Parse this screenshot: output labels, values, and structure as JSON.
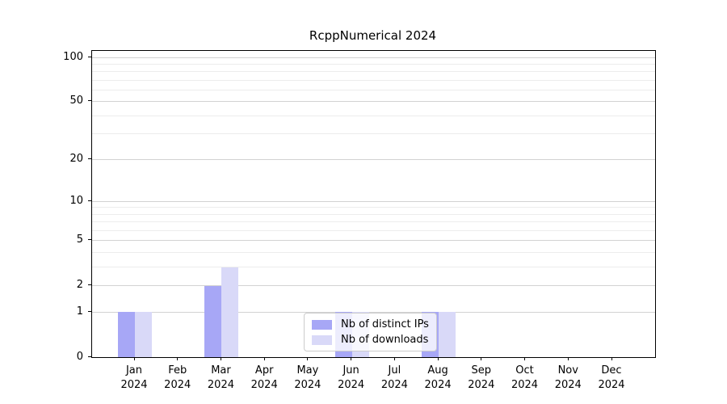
{
  "title": "RcppNumerical 2024",
  "chart_data": {
    "type": "bar",
    "title": "RcppNumerical 2024",
    "yscale": "log1p",
    "grid": true,
    "legend_position": "lower center",
    "categories": [
      "Jan 2024",
      "Feb 2024",
      "Mar 2024",
      "Apr 2024",
      "May 2024",
      "Jun 2024",
      "Jul 2024",
      "Aug 2024",
      "Sep 2024",
      "Oct 2024",
      "Nov 2024",
      "Dec 2024"
    ],
    "series": [
      {
        "name": "Nb of distinct IPs",
        "color": "#a7a7f6",
        "values": [
          1,
          0,
          2,
          0,
          0,
          1,
          0,
          1,
          0,
          0,
          0,
          0
        ]
      },
      {
        "name": "Nb of downloads",
        "color": "#d9d9f8",
        "values": [
          1,
          0,
          3,
          0,
          0,
          1,
          0,
          1,
          0,
          0,
          0,
          0
        ]
      }
    ],
    "yticks_major": [
      0,
      1,
      2,
      5,
      10,
      20,
      50,
      100
    ],
    "yticks_minor": [
      3,
      4,
      6,
      7,
      8,
      9,
      30,
      40,
      60,
      70,
      80,
      90
    ],
    "ylim": [
      0,
      110
    ],
    "xlabel": "",
    "ylabel": ""
  },
  "colors": {
    "bar_distinct_ips": "#a7a7f6",
    "bar_downloads": "#d9d9f8",
    "grid_major": "#d2d2d2",
    "grid_minor": "#ececec",
    "axis": "#000000",
    "legend_border": "#cccccc",
    "background": "#ffffff"
  },
  "legend": {
    "items": [
      {
        "label": "Nb of distinct IPs"
      },
      {
        "label": "Nb of downloads"
      }
    ]
  }
}
